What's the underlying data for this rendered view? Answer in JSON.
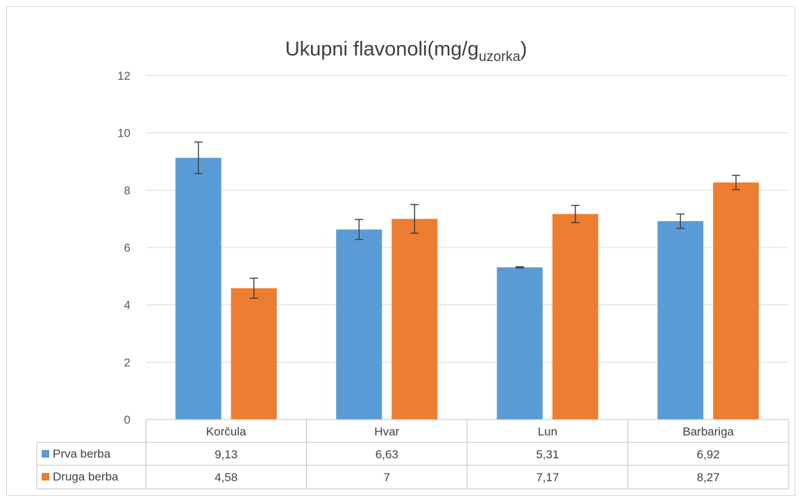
{
  "chart_data": {
    "type": "bar",
    "title": "Ukupni flavonoli(mg/g",
    "title_subscript": "uzorka",
    "title_suffix": ")",
    "categories": [
      "Korčula",
      "Hvar",
      "Lun",
      "Barbariga"
    ],
    "series": [
      {
        "name": "Prva berba",
        "color": "#5b9bd5",
        "values": [
          9.13,
          6.63,
          5.31,
          6.92
        ],
        "labels": [
          "9,13",
          "6,63",
          "5,31",
          "6,92"
        ],
        "errors": [
          0.55,
          0.35,
          0.02,
          0.25
        ]
      },
      {
        "name": "Druga berba",
        "color": "#ed7d31",
        "values": [
          4.58,
          7.0,
          7.17,
          8.27
        ],
        "labels": [
          "4,58",
          "7",
          "7,17",
          "8,27"
        ],
        "errors": [
          0.35,
          0.5,
          0.3,
          0.25
        ]
      }
    ],
    "yticks": [
      "0",
      "2",
      "4",
      "6",
      "8",
      "10",
      "12"
    ],
    "ylim": [
      0,
      12
    ],
    "grid": true,
    "legend": "data-table"
  }
}
